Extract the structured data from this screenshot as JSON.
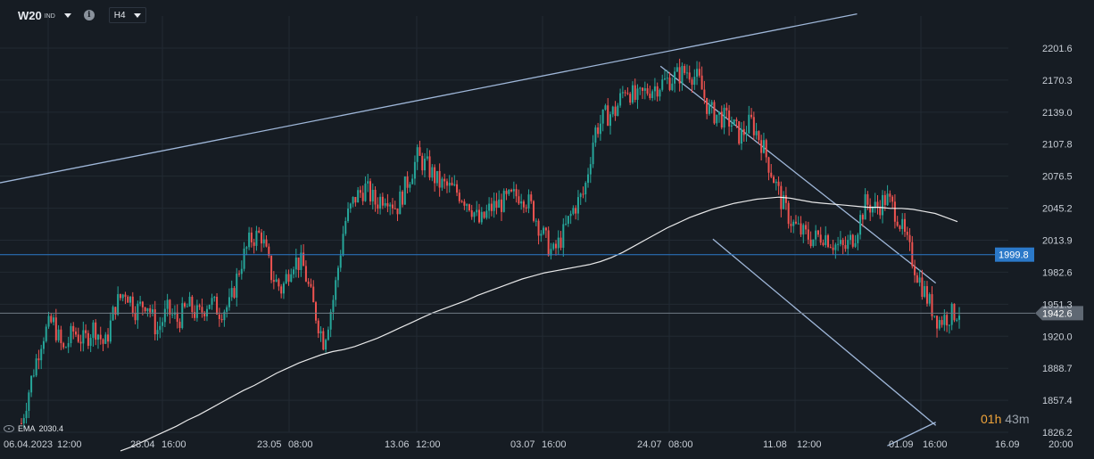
{
  "toolbar": {
    "symbol": "W20",
    "exchange": "IND",
    "timeframe": "H4"
  },
  "indicator": {
    "name": "EMA",
    "value": "2030.4"
  },
  "countdown": {
    "hours": "01h",
    "minutes": "43m"
  },
  "colors": {
    "background": "#161c23",
    "grid": "#222a33",
    "bull": "#26a69a",
    "bear": "#ef5350",
    "ema": "#ffffff",
    "trendline": "#9fb7d9",
    "hline": "#2b79c9",
    "price_line": "#707a85",
    "axis_text": "#c8ced6"
  },
  "chart_data": {
    "type": "candlestick",
    "y_ticks": [
      "2201.6",
      "2170.3",
      "2139.0",
      "2107.8",
      "2076.5",
      "2045.2",
      "2013.9",
      "1982.6",
      "1951.3",
      "1920.0",
      "1888.7",
      "1857.4",
      "1826.2"
    ],
    "x_ticks": [
      "06.04.2023",
      "12:00",
      "28.04",
      "16:00",
      "23.05",
      "08:00",
      "13.06",
      "12:00",
      "03.07",
      "16:00",
      "24.07",
      "08:00",
      "11.08",
      "12:00",
      "01.09",
      "16:00",
      "16.09",
      "20:00"
    ],
    "ylim": [
      1826.2,
      2201.6
    ],
    "horizontal_line": {
      "label": "1999.8",
      "value": 1999.8
    },
    "last_price": {
      "label": "1942.6",
      "value": 1942.6
    },
    "ema": {
      "label": "EMA",
      "value": 2030.4
    },
    "close_path": [
      1835,
      1880,
      1920,
      1935,
      1905,
      1925,
      1915,
      1930,
      1910,
      1950,
      1965,
      1945,
      1955,
      1925,
      1945,
      1935,
      1950,
      1940,
      1955,
      1945,
      1950,
      1990,
      2015,
      2020,
      1980,
      1965,
      1995,
      1990,
      1950,
      1915,
      1960,
      2030,
      2055,
      2065,
      2050,
      2060,
      2045,
      2070,
      2095,
      2085,
      2070,
      2065,
      2060,
      2050,
      2030,
      2045,
      2050,
      2055,
      2060,
      2045,
      2020,
      2000,
      2020,
      2045,
      2060,
      2120,
      2135,
      2140,
      2165,
      2150,
      2160,
      2165,
      2170,
      2175,
      2180,
      2170,
      2140,
      2135,
      2130,
      2115,
      2130,
      2110,
      2080,
      2050,
      2030,
      2020,
      2015,
      2020,
      2010,
      2005,
      2020,
      2050,
      2045,
      2055,
      2040,
      2010,
      1980,
      1955,
      1935,
      1940,
      1945
    ],
    "ema_path": [
      1808,
      1812,
      1817,
      1822,
      1827,
      1832,
      1838,
      1843,
      1849,
      1855,
      1861,
      1867,
      1872,
      1878,
      1884,
      1889,
      1894,
      1898,
      1902,
      1905,
      1907,
      1910,
      1914,
      1918,
      1923,
      1928,
      1933,
      1938,
      1943,
      1947,
      1951,
      1955,
      1960,
      1964,
      1968,
      1972,
      1976,
      1979,
      1982,
      1984,
      1986,
      1988,
      1990,
      1993,
      1997,
      2002,
      2008,
      2014,
      2020,
      2026,
      2031,
      2036,
      2040,
      2044,
      2047,
      2050,
      2052,
      2054,
      2055,
      2056,
      2055,
      2053,
      2051,
      2050,
      2049,
      2048,
      2047,
      2046,
      2046,
      2045,
      2045,
      2044,
      2042,
      2040,
      2036,
      2032
    ],
    "trendlines": [
      {
        "name": "upper-resistance",
        "x": [
          0,
          0.85
        ],
        "y": [
          2070,
          2235
        ]
      },
      {
        "name": "channel-top",
        "x": [
          0.655,
          0.928
        ],
        "y": [
          2184,
          1972
        ]
      },
      {
        "name": "channel-bottom",
        "x": [
          0.707,
          0.928
        ],
        "y": [
          2015,
          1833
        ]
      },
      {
        "name": "support-tail",
        "x": [
          0.88,
          0.928
        ],
        "y": [
          1813,
          1836
        ]
      }
    ],
    "grid": true
  }
}
